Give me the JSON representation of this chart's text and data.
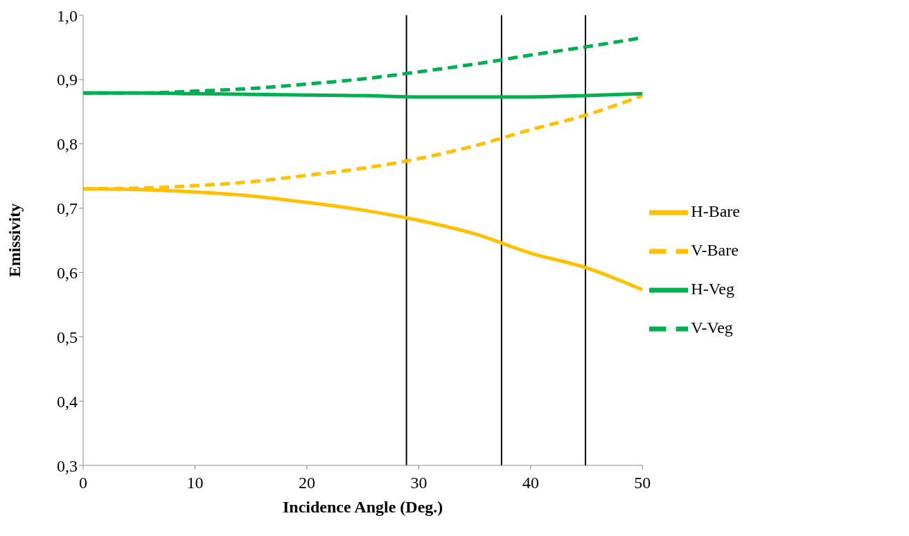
{
  "chart_data": {
    "type": "line",
    "xlabel": "Incidence Angle (Deg.)",
    "ylabel": "Emissivity",
    "x": [
      0,
      5,
      10,
      15,
      20,
      25,
      30,
      35,
      40,
      45,
      50
    ],
    "series": [
      {
        "name": "H-Bare",
        "color": "#ffc000",
        "line_style": "solid",
        "values": [
          0.73,
          0.729,
          0.725,
          0.719,
          0.709,
          0.697,
          0.681,
          0.66,
          0.63,
          0.607,
          0.573
        ]
      },
      {
        "name": "V-Bare",
        "color": "#ffc000",
        "line_style": "dashed",
        "values": [
          0.73,
          0.731,
          0.735,
          0.741,
          0.751,
          0.762,
          0.777,
          0.797,
          0.822,
          0.845,
          0.875
        ]
      },
      {
        "name": "H-Veg",
        "color": "#00b050",
        "line_style": "solid",
        "values": [
          0.879,
          0.879,
          0.878,
          0.877,
          0.876,
          0.875,
          0.873,
          0.873,
          0.873,
          0.875,
          0.878
        ]
      },
      {
        "name": "V-Veg",
        "color": "#00b050",
        "line_style": "dashed",
        "values": [
          0.879,
          0.879,
          0.882,
          0.886,
          0.893,
          0.901,
          0.912,
          0.924,
          0.938,
          0.951,
          0.965
        ]
      }
    ],
    "xlim": [
      0,
      50
    ],
    "xticks": [
      0,
      10,
      20,
      30,
      40,
      50
    ],
    "ylim": [
      0.3,
      1.0
    ],
    "yticks": [
      {
        "value": 0.3,
        "label": "0,3"
      },
      {
        "value": 0.4,
        "label": "0,4"
      },
      {
        "value": 0.5,
        "label": "0,5"
      },
      {
        "value": 0.6,
        "label": "0,6"
      },
      {
        "value": 0.7,
        "label": "0,7"
      },
      {
        "value": 0.8,
        "label": "0,8"
      },
      {
        "value": 0.9,
        "label": "0,9"
      },
      {
        "value": 1.0,
        "label": "1,0"
      }
    ],
    "ref_lines": [
      {
        "axis": "x",
        "value": 28.9,
        "color": "#000000"
      },
      {
        "axis": "x",
        "value": 37.4,
        "color": "#000000"
      },
      {
        "axis": "x",
        "value": 44.9,
        "color": "#000000"
      }
    ],
    "legend": "right",
    "grid": false,
    "marker": "none"
  }
}
